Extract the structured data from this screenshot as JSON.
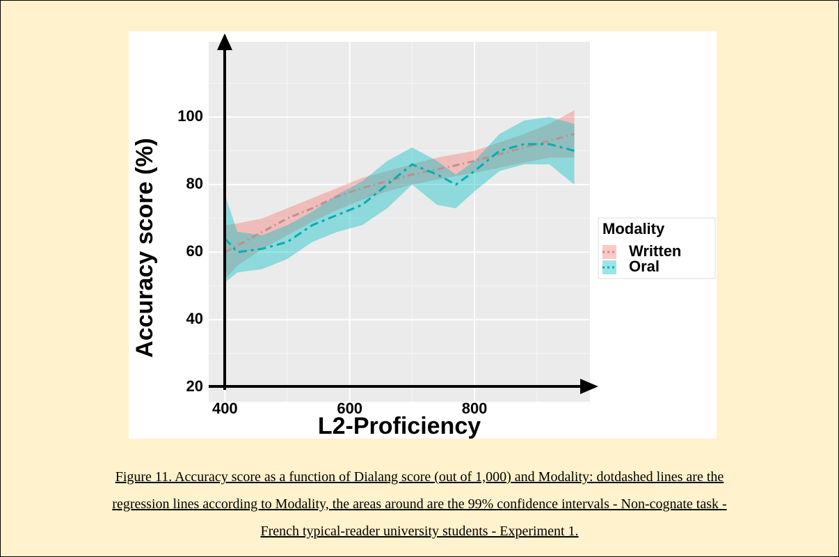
{
  "chart_data": {
    "type": "ribbon-line",
    "y_label": "Accuracy score (%)",
    "x_label": "L2-Proficiency",
    "legend_title": "Modality",
    "legend_position": "right",
    "grid": true,
    "x": [
      400,
      420,
      460,
      500,
      540,
      580,
      620,
      660,
      700,
      740,
      770,
      800,
      840,
      880,
      920,
      960
    ],
    "series": [
      {
        "name": "Written",
        "color": "#f8766d",
        "line_color": "#b89292",
        "values": [
          60,
          62,
          66,
          70,
          73,
          76.5,
          79,
          81,
          83,
          84.5,
          85.7,
          87,
          89,
          91,
          93,
          95
        ],
        "upper": [
          68,
          68.5,
          70,
          73,
          76,
          79,
          82,
          84,
          86,
          88,
          89,
          90,
          92.5,
          95,
          98,
          102
        ],
        "lower": [
          52,
          56,
          61,
          65,
          69,
          72.5,
          75.5,
          78,
          80,
          81.5,
          82.5,
          83.5,
          85,
          86.5,
          88,
          88
        ]
      },
      {
        "name": "Oral",
        "color": "#00bfc4",
        "line_color": "#00aeb2",
        "values": [
          64,
          60,
          61,
          63,
          68,
          71,
          74,
          80,
          86,
          83,
          80,
          84,
          90,
          92,
          92,
          90
        ],
        "upper": [
          77,
          66,
          65,
          68,
          72,
          77,
          81,
          87,
          91,
          87,
          83,
          87,
          95,
          99,
          100,
          98
        ],
        "lower": [
          51,
          54,
          55,
          58,
          63,
          66,
          68,
          73,
          80,
          74,
          73,
          78,
          84,
          86,
          86,
          80
        ]
      }
    ],
    "xlim": [
      374,
      985
    ],
    "ylim": [
      15.7,
      122.3
    ],
    "xticks": [
      400,
      600,
      800
    ],
    "yticks": [
      20,
      40,
      60,
      80,
      100
    ],
    "caption": [
      "Figure 11. Accuracy score as a function of Dialang score (out of 1,000) and Modality: dotdashed lines are the",
      "regression lines according to Modality, the areas around are the 99% confidence intervals - Non-cognate task -",
      "French typical-reader university students - Experiment 1."
    ]
  }
}
